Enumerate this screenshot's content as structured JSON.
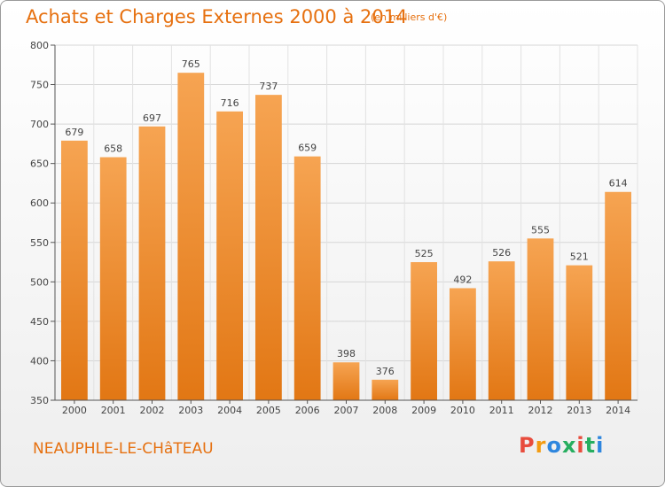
{
  "header": {
    "title": "Achats et Charges Externes 2000 à 2014",
    "subtitle": "(en milliers d'€)"
  },
  "footer": {
    "place": "NEAUPHLE-LE-CHâTEAU",
    "logo": [
      "P",
      "r",
      "o",
      "x",
      "i",
      "t",
      "i"
    ],
    "logo_colors": [
      "#e84c3d",
      "#f39c12",
      "#2e86de",
      "#27ae60",
      "#e84c3d",
      "#27ae60",
      "#2e86de"
    ]
  },
  "chart_data": {
    "type": "bar",
    "categories": [
      "2000",
      "2001",
      "2002",
      "2003",
      "2004",
      "2005",
      "2006",
      "2007",
      "2008",
      "2009",
      "2010",
      "2011",
      "2012",
      "2013",
      "2014"
    ],
    "values": [
      679,
      658,
      697,
      765,
      716,
      737,
      659,
      398,
      376,
      525,
      492,
      526,
      555,
      521,
      614
    ],
    "ylim": [
      350,
      800
    ],
    "yticks": [
      350,
      400,
      450,
      500,
      550,
      600,
      650,
      700,
      750,
      800
    ],
    "grid": true,
    "bar_color": "#f0902f"
  }
}
